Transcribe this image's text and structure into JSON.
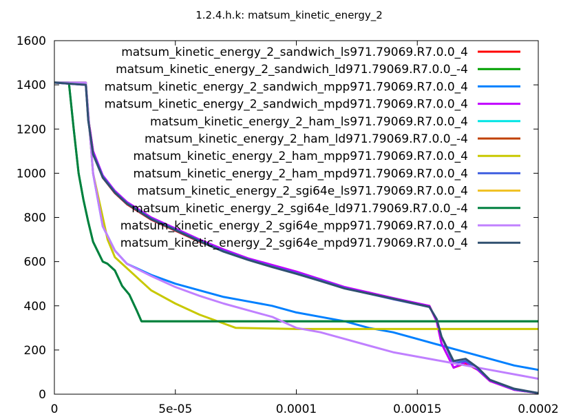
{
  "chart_data": {
    "type": "line",
    "title": "1.2.4.h.k: matsum_kinetic_energy_2",
    "xlabel": "",
    "ylabel": "",
    "xlim": [
      0,
      0.0002
    ],
    "ylim": [
      0,
      1600
    ],
    "x_ticks": [
      "0",
      "5e-05",
      "0.0001",
      "0.00015",
      "0.0002"
    ],
    "y_ticks": [
      "0",
      "200",
      "400",
      "600",
      "800",
      "1000",
      "1200",
      "1400",
      "1600"
    ],
    "grid": false,
    "legend_position": "top-right",
    "series": [
      {
        "name": "matsum_kinetic_energy_2_sandwich_ls971.79069.R7.0.0_4",
        "color": "#ff0000",
        "x": [
          0,
          1.3e-05,
          1.4e-05,
          1.6e-05,
          2e-05,
          2.5e-05,
          3e-05,
          4e-05,
          5e-05,
          6e-05,
          7e-05,
          8e-05,
          9e-05,
          0.0001,
          0.00011,
          0.00012,
          0.00013,
          0.00014,
          0.000155,
          0.000158,
          0.00016,
          0.000165,
          0.00017,
          0.000175,
          0.00018,
          0.00019,
          0.0002
        ],
        "y": [
          1410,
          1410,
          1250,
          1100,
          980,
          910,
          860,
          790,
          740,
          690,
          650,
          610,
          580,
          550,
          520,
          480,
          460,
          430,
          400,
          330,
          230,
          120,
          140,
          110,
          60,
          20,
          5
        ]
      },
      {
        "name": "matsum_kinetic_energy_2_sandwich_ld971.79069.R7.0.0_-4",
        "color": "#00a000",
        "x": [
          0,
          6e-06,
          8e-06,
          1e-05,
          1.2e-05,
          1.4e-05,
          1.6e-05,
          2e-05,
          2.2e-05,
          2.5e-05,
          2.8e-05,
          3.1e-05,
          3.4e-05,
          3.6e-05,
          5e-05,
          0.0001,
          0.00015,
          0.0002
        ],
        "y": [
          1410,
          1410,
          1200,
          1000,
          880,
          780,
          690,
          600,
          590,
          560,
          490,
          450,
          380,
          330,
          330,
          330,
          330,
          330
        ]
      },
      {
        "name": "matsum_kinetic_energy_2_sandwich_mpp971.79069.R7.0.0_4",
        "color": "#0080ff",
        "x": [
          0,
          1.3e-05,
          1.6e-05,
          2e-05,
          2.5e-05,
          3e-05,
          4e-05,
          5e-05,
          6e-05,
          7e-05,
          8e-05,
          9e-05,
          0.0001,
          0.00011,
          0.00012,
          0.00013,
          0.00014,
          0.00015,
          0.00016,
          0.00017,
          0.00018,
          0.00019,
          0.0002
        ],
        "y": [
          1410,
          1410,
          1000,
          760,
          650,
          590,
          540,
          500,
          470,
          440,
          420,
          400,
          370,
          350,
          330,
          300,
          280,
          250,
          220,
          190,
          160,
          130,
          110
        ]
      },
      {
        "name": "matsum_kinetic_energy_2_sandwich_mpd971.79069.R7.0.0_4",
        "color": "#c000ff",
        "x": [
          0,
          1.3e-05,
          1.4e-05,
          1.6e-05,
          2e-05,
          2.5e-05,
          3e-05,
          4e-05,
          5e-05,
          6e-05,
          7e-05,
          8e-05,
          9e-05,
          0.0001,
          0.00011,
          0.00012,
          0.00013,
          0.00014,
          0.000155,
          0.000158,
          0.00016,
          0.000165,
          0.00017,
          0.000175,
          0.00018,
          0.00019,
          0.0002
        ],
        "y": [
          1410,
          1400,
          1250,
          1100,
          990,
          920,
          870,
          800,
          750,
          700,
          655,
          615,
          585,
          555,
          520,
          485,
          460,
          435,
          400,
          330,
          230,
          120,
          145,
          110,
          60,
          20,
          5
        ]
      },
      {
        "name": "matsum_kinetic_energy_2_ham_ls971.79069.R7.0.0_4",
        "color": "#00e5e5",
        "x": [],
        "y": []
      },
      {
        "name": "matsum_kinetic_energy_2_ham_ld971.79069.R7.0.0_-4",
        "color": "#c04000",
        "x": [],
        "y": []
      },
      {
        "name": "matsum_kinetic_energy_2_ham_mpp971.79069.R7.0.0_4",
        "color": "#c8c800",
        "x": [
          0,
          1.3e-05,
          1.6e-05,
          2e-05,
          2.2e-05,
          2.5e-05,
          3e-05,
          3.5e-05,
          4e-05,
          5e-05,
          6e-05,
          7e-05,
          7.5e-05,
          0.0001,
          0.00015,
          0.0002
        ],
        "y": [
          1410,
          1410,
          1000,
          800,
          700,
          620,
          570,
          520,
          470,
          410,
          360,
          320,
          300,
          295,
          295,
          295
        ]
      },
      {
        "name": "matsum_kinetic_energy_2_ham_mpd971.79069.R7.0.0_4",
        "color": "#4060e0",
        "x": [
          0,
          1.3e-05,
          1.4e-05,
          1.6e-05,
          2e-05,
          2.5e-05,
          3e-05,
          4e-05,
          5e-05,
          6e-05,
          7e-05,
          8e-05,
          9e-05,
          0.0001,
          0.00011,
          0.00012,
          0.00013,
          0.00014,
          0.000155,
          0.000158,
          0.00016,
          0.000165,
          0.00017,
          0.000175,
          0.00018,
          0.00019,
          0.0002
        ],
        "y": [
          1410,
          1400,
          1240,
          1090,
          985,
          915,
          865,
          795,
          745,
          695,
          648,
          610,
          578,
          548,
          515,
          480,
          455,
          430,
          395,
          340,
          260,
          140,
          150,
          115,
          65,
          22,
          5
        ]
      },
      {
        "name": "matsum_kinetic_energy_2_sgi64e_ls971.79069.R7.0.0_4",
        "color": "#f0c020",
        "x": [],
        "y": []
      },
      {
        "name": "matsum_kinetic_energy_2_sgi64e_ld971.79069.R7.0.0_-4",
        "color": "#008040",
        "x": [
          0,
          6e-06,
          8e-06,
          1e-05,
          1.2e-05,
          1.4e-05,
          1.6e-05,
          2e-05,
          2.2e-05,
          2.5e-05,
          2.8e-05,
          3.1e-05,
          3.4e-05,
          3.6e-05,
          5e-05,
          0.0001,
          0.00015,
          0.0002
        ],
        "y": [
          1410,
          1410,
          1200,
          1000,
          880,
          780,
          690,
          600,
          590,
          560,
          490,
          450,
          380,
          330,
          330,
          330,
          330,
          330
        ]
      },
      {
        "name": "matsum_kinetic_energy_2_sgi64e_mpp971.79069.R7.0.0_4",
        "color": "#c080ff",
        "x": [
          0,
          1.3e-05,
          1.6e-05,
          2e-05,
          2.5e-05,
          3e-05,
          4e-05,
          5e-05,
          6e-05,
          7e-05,
          8e-05,
          9e-05,
          0.0001,
          0.00011,
          0.00012,
          0.00013,
          0.00014,
          0.00015,
          0.00016,
          0.00017,
          0.00018,
          0.00019,
          0.0002
        ],
        "y": [
          1410,
          1410,
          1000,
          760,
          650,
          590,
          535,
          485,
          445,
          410,
          380,
          350,
          300,
          280,
          250,
          220,
          190,
          170,
          150,
          130,
          110,
          90,
          70
        ]
      },
      {
        "name": "matsum_kinetic_energy_2_sgi64e_mpd971.79069.R7.0.0_4",
        "color": "#305070",
        "x": [
          0,
          1.3e-05,
          1.4e-05,
          1.6e-05,
          2e-05,
          2.5e-05,
          3e-05,
          4e-05,
          5e-05,
          6e-05,
          7e-05,
          8e-05,
          9e-05,
          0.0001,
          0.00011,
          0.00012,
          0.00013,
          0.00014,
          0.000155,
          0.000158,
          0.00016,
          0.000165,
          0.00017,
          0.000175,
          0.00018,
          0.00019,
          0.0002
        ],
        "y": [
          1410,
          1400,
          1240,
          1085,
          980,
          912,
          862,
          792,
          742,
          692,
          645,
          608,
          575,
          545,
          512,
          478,
          455,
          432,
          395,
          340,
          260,
          150,
          160,
          120,
          65,
          25,
          5
        ]
      }
    ]
  }
}
